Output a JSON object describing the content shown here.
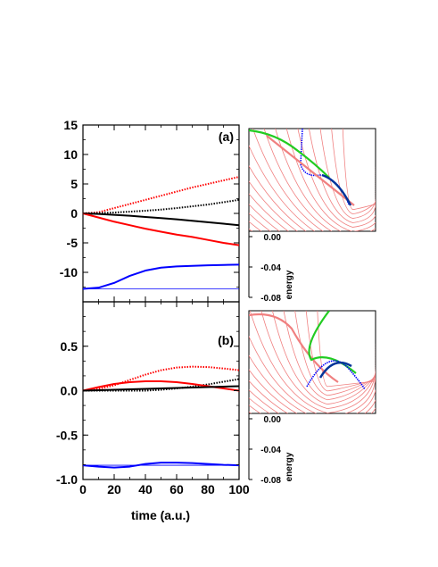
{
  "chart_data": [
    {
      "type": "line",
      "panel_label": "(a)",
      "xlabel": "time (a.u.)",
      "xlim": [
        0,
        100
      ],
      "ylim": [
        -15,
        15
      ],
      "x_ticks": [
        "0",
        "20",
        "40",
        "60",
        "80",
        "100"
      ],
      "y_ticks": [
        "15",
        "10",
        "5",
        "0",
        "-5",
        "-10"
      ],
      "series": [
        {
          "color": "#ff0000",
          "style": "dotted",
          "x": [
            0,
            10,
            20,
            30,
            40,
            50,
            60,
            70,
            80,
            90,
            100
          ],
          "y": [
            0,
            0.2,
            0.9,
            1.6,
            2.3,
            3.0,
            3.7,
            4.4,
            5.0,
            5.6,
            6.2
          ]
        },
        {
          "color": "#000000",
          "style": "dotted",
          "x": [
            0,
            10,
            20,
            30,
            40,
            50,
            60,
            70,
            80,
            90,
            100
          ],
          "y": [
            0,
            0.05,
            0.15,
            0.3,
            0.45,
            0.65,
            0.9,
            1.2,
            1.5,
            1.9,
            2.3
          ]
        },
        {
          "color": "#000000",
          "style": "solid",
          "x": [
            0,
            10,
            20,
            30,
            40,
            50,
            60,
            70,
            80,
            90,
            100
          ],
          "y": [
            0,
            -0.1,
            -0.25,
            -0.4,
            -0.6,
            -0.8,
            -1.0,
            -1.25,
            -1.5,
            -1.75,
            -2.0
          ]
        },
        {
          "color": "#ff0000",
          "style": "solid",
          "x": [
            0,
            10,
            20,
            30,
            40,
            50,
            60,
            70,
            80,
            90,
            100
          ],
          "y": [
            0,
            -0.7,
            -1.4,
            -2.0,
            -2.6,
            -3.1,
            -3.6,
            -4.0,
            -4.5,
            -5.0,
            -5.4
          ]
        },
        {
          "color": "#0000ff",
          "style": "solid",
          "x": [
            0,
            10,
            20,
            30,
            40,
            50,
            60,
            70,
            80,
            90,
            100
          ],
          "y": [
            -12.8,
            -12.6,
            -11.8,
            -10.6,
            -9.7,
            -9.2,
            -9.0,
            -8.9,
            -8.8,
            -8.75,
            -8.7
          ]
        },
        {
          "color": "#0000ff",
          "style": "solid-thin",
          "x": [
            0,
            100
          ],
          "y": [
            -12.8,
            -12.8
          ]
        }
      ]
    },
    {
      "type": "line",
      "panel_label": "(b)",
      "xlabel": "time (a.u.)",
      "xlim": [
        0,
        100
      ],
      "ylim": [
        -1.0,
        1.0
      ],
      "x_ticks": [
        "0",
        "20",
        "40",
        "60",
        "80",
        "100"
      ],
      "y_ticks": [
        "0.5",
        "0.0",
        "-0.5",
        "-1.0"
      ],
      "series": [
        {
          "color": "#ff0000",
          "style": "dotted",
          "x": [
            0,
            10,
            20,
            30,
            40,
            50,
            60,
            70,
            80,
            90,
            100
          ],
          "y": [
            0,
            0.02,
            0.06,
            0.12,
            0.18,
            0.23,
            0.26,
            0.27,
            0.265,
            0.25,
            0.23
          ]
        },
        {
          "color": "#000000",
          "style": "dotted",
          "x": [
            0,
            10,
            20,
            30,
            40,
            50,
            60,
            70,
            80,
            90,
            100
          ],
          "y": [
            0,
            0,
            0,
            0,
            0,
            0.01,
            0.025,
            0.045,
            0.07,
            0.1,
            0.13
          ]
        },
        {
          "color": "#ff0000",
          "style": "solid",
          "x": [
            0,
            10,
            20,
            30,
            40,
            50,
            60,
            70,
            80,
            90,
            100
          ],
          "y": [
            0,
            0.04,
            0.075,
            0.095,
            0.105,
            0.105,
            0.095,
            0.075,
            0.05,
            0.025,
            0.0
          ]
        },
        {
          "color": "#000000",
          "style": "solid",
          "x": [
            0,
            10,
            20,
            30,
            40,
            50,
            60,
            70,
            80,
            90,
            100
          ],
          "y": [
            0,
            0.005,
            0.01,
            0.015,
            0.02,
            0.025,
            0.03,
            0.035,
            0.04,
            0.045,
            0.05
          ]
        },
        {
          "color": "#0000ff",
          "style": "solid",
          "x": [
            0,
            10,
            20,
            30,
            40,
            50,
            60,
            70,
            80,
            90,
            100
          ],
          "y": [
            -0.84,
            -0.855,
            -0.865,
            -0.855,
            -0.825,
            -0.81,
            -0.81,
            -0.815,
            -0.825,
            -0.835,
            -0.84
          ]
        },
        {
          "color": "#0000ff",
          "style": "solid-thin",
          "x": [
            0,
            100
          ],
          "y": [
            -0.84,
            -0.84
          ]
        }
      ]
    },
    {
      "type": "line",
      "inset_of": "(a)",
      "ylabel": "energy",
      "y_ticks": [
        "0.00",
        "-0.04",
        "-0.08"
      ],
      "contour_color": "#f08080",
      "trajectories": [
        "#0000ff",
        "#22cc22",
        "#f08080",
        "#003399"
      ]
    },
    {
      "type": "line",
      "inset_of": "(b)",
      "ylabel": "energy",
      "y_ticks": [
        "0.00",
        "-0.04",
        "-0.08"
      ],
      "contour_color": "#f08080",
      "trajectories": [
        "#0000ff",
        "#22cc22",
        "#f08080",
        "#003399"
      ]
    }
  ]
}
